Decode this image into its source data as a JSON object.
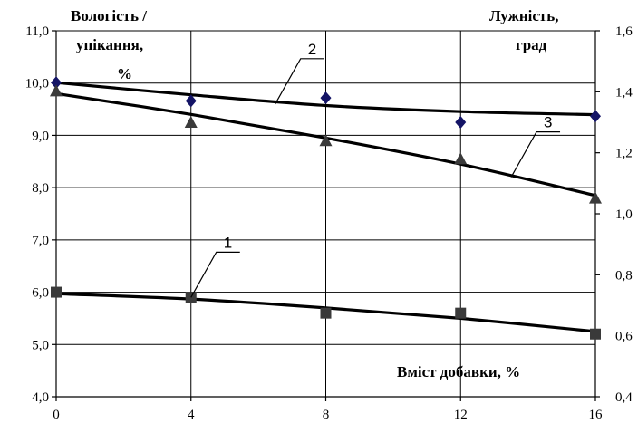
{
  "chart_data": {
    "type": "scatter",
    "x_ticks": [
      "0",
      "4",
      "8",
      "12",
      "16"
    ],
    "xlabel": "Вміст добавки, %",
    "xlim": [
      0,
      16
    ],
    "y_left": {
      "label_lines": [
        "Вологість /",
        "упікання,",
        "%"
      ],
      "lim": [
        4.0,
        11.0
      ],
      "ticks": [
        "4,0",
        "5,0",
        "6,0",
        "7,0",
        "8,0",
        "9,0",
        "10,0",
        "11,0"
      ]
    },
    "y_right": {
      "label_lines": [
        "Лужність,",
        "град"
      ],
      "lim": [
        0.4,
        1.6
      ],
      "ticks": [
        "0,4",
        "0,6",
        "0,8",
        "1,0",
        "1,2",
        "1,4",
        "1,6"
      ]
    },
    "grid": true,
    "series": [
      {
        "name": "1",
        "axis": "left",
        "marker": "square",
        "color": "#3a3a3a",
        "x": [
          0,
          4,
          8,
          12,
          16
        ],
        "y": [
          6.0,
          5.9,
          5.6,
          5.6,
          5.2
        ],
        "fit_y": [
          5.97,
          5.87,
          5.7,
          5.5,
          5.25
        ],
        "label_anchor": [
          4,
          5.9
        ]
      },
      {
        "name": "2",
        "axis": "right",
        "marker": "diamond",
        "color": "#141466",
        "x": [
          0,
          4,
          8,
          12,
          16
        ],
        "y": [
          1.43,
          1.37,
          1.38,
          1.3,
          1.32
        ],
        "fit_y": [
          1.43,
          1.39,
          1.355,
          1.335,
          1.325
        ],
        "label_anchor": [
          6.5,
          1.36
        ]
      },
      {
        "name": "3",
        "axis": "left",
        "marker": "triangle",
        "color": "#3a3a3a",
        "x": [
          0,
          4,
          8,
          12,
          16
        ],
        "y": [
          9.85,
          9.25,
          8.9,
          8.55,
          7.8
        ],
        "fit_y": [
          9.8,
          9.4,
          8.95,
          8.45,
          7.85
        ],
        "label_anchor": [
          13.5,
          8.2
        ]
      }
    ]
  }
}
